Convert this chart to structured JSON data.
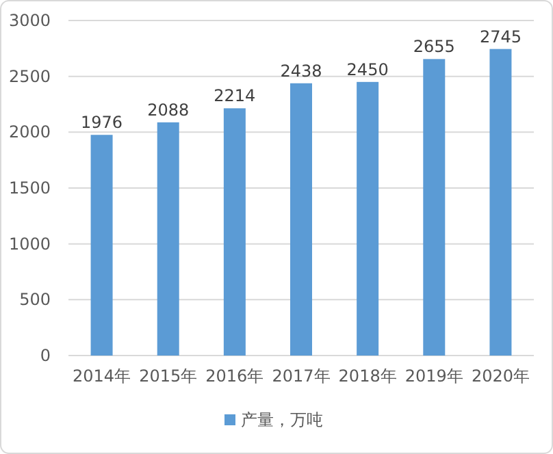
{
  "chart_data": {
    "type": "bar",
    "categories": [
      "2014年",
      "2015年",
      "2016年",
      "2017年",
      "2018年",
      "2019年",
      "2020年"
    ],
    "series": [
      {
        "name": "产量，万吨",
        "color": "#5b9bd5",
        "values": [
          1976,
          2088,
          2214,
          2438,
          2450,
          2655,
          2745
        ]
      }
    ],
    "ylim": [
      0,
      3000
    ],
    "yticks": [
      0,
      500,
      1000,
      1500,
      2000,
      2500,
      3000
    ],
    "grid": "y",
    "legend": "bottom",
    "data_labels": true
  }
}
